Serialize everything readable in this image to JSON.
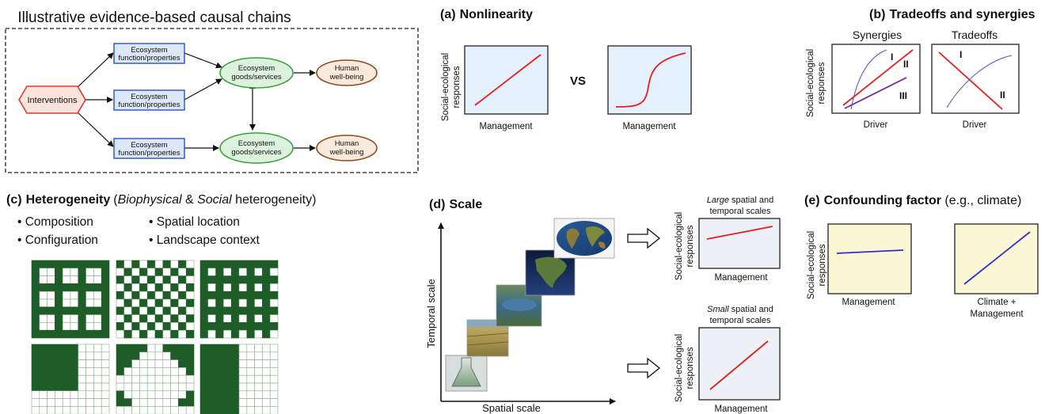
{
  "causal_chains": {
    "title": "Illustrative evidence-based causal chains",
    "interventions": "Interventions",
    "function_line1": "Ecosystem",
    "function_line2": "function/properties",
    "goods_line1": "Ecosystem",
    "goods_line2": "goods/services",
    "wellbeing_line1": "Human",
    "wellbeing_line2": "well-being"
  },
  "nonlinearity": {
    "label": "(a)",
    "title": "Nonlinearity",
    "ylabel_line1": "Social-ecological",
    "ylabel_line2": "responses",
    "xlabel_left": "Management",
    "xlabel_right": "Management",
    "vs": "VS"
  },
  "tradeoffs": {
    "label": "(b)",
    "title": "Tradeoffs and synergies",
    "synergies": "Synergies",
    "tradeoffs": "Tradeoffs",
    "ylabel_line1": "Social-ecological",
    "ylabel_line2": "responses",
    "xlabel_left": "Driver",
    "xlabel_right": "Driver",
    "syn_labels": [
      "I",
      "II",
      "III"
    ],
    "trade_labels": [
      "I",
      "II"
    ]
  },
  "heterogeneity": {
    "label": "(c)",
    "title": "Heterogeneity",
    "paren_open": "(",
    "bio": "Biophysical",
    "amp": " & ",
    "social": "Social",
    "paren_rest": " heterogeneity)",
    "bullets": [
      "• Composition",
      "• Configuration",
      "• Spatial location",
      "• Landscape context"
    ]
  },
  "scale": {
    "label": "(d)",
    "title": "Scale",
    "yaxis": "Temporal scale",
    "xaxis": "Spatial scale",
    "large_italic": "Large",
    "large_rest": " spatial and",
    "large_line2": "temporal scales",
    "small_italic": "Small",
    "small_rest": " spatial and",
    "small_line2": "temporal scales",
    "ylabel_line1": "Social-ecological",
    "ylabel_line2": "responses",
    "xlabel_top": "Management",
    "xlabel_bottom": "Management"
  },
  "confounding": {
    "label": "(e)",
    "title": "Confounding factor",
    "subtitle": " (e.g., climate)",
    "ylabel_line1": "Social-ecological",
    "ylabel_line2": "responses",
    "xlabel_left": "Management",
    "xlabel_right_line1": "Climate +",
    "xlabel_right_line2": "Management"
  },
  "colors": {
    "function_fill": "#dce8f8",
    "function_stroke": "#3a5cc0",
    "goods_fill": "#dcf2dc",
    "goods_stroke": "#3aa03a",
    "wellbeing_fill": "#fbe9dc",
    "wellbeing_stroke": "#8b4a22",
    "intervention_fill": "#fde3de",
    "intervention_stroke": "#e03a2a",
    "plot_blue_bg": "#e4f0fb",
    "plot_gray_bg": "#edf0f6",
    "plot_yellow_bg": "#fbf6d4",
    "red_line": "#e02020",
    "blue_line": "#3030c8",
    "purple_line": "#7030a0",
    "grid_green": "#1e5c28"
  }
}
